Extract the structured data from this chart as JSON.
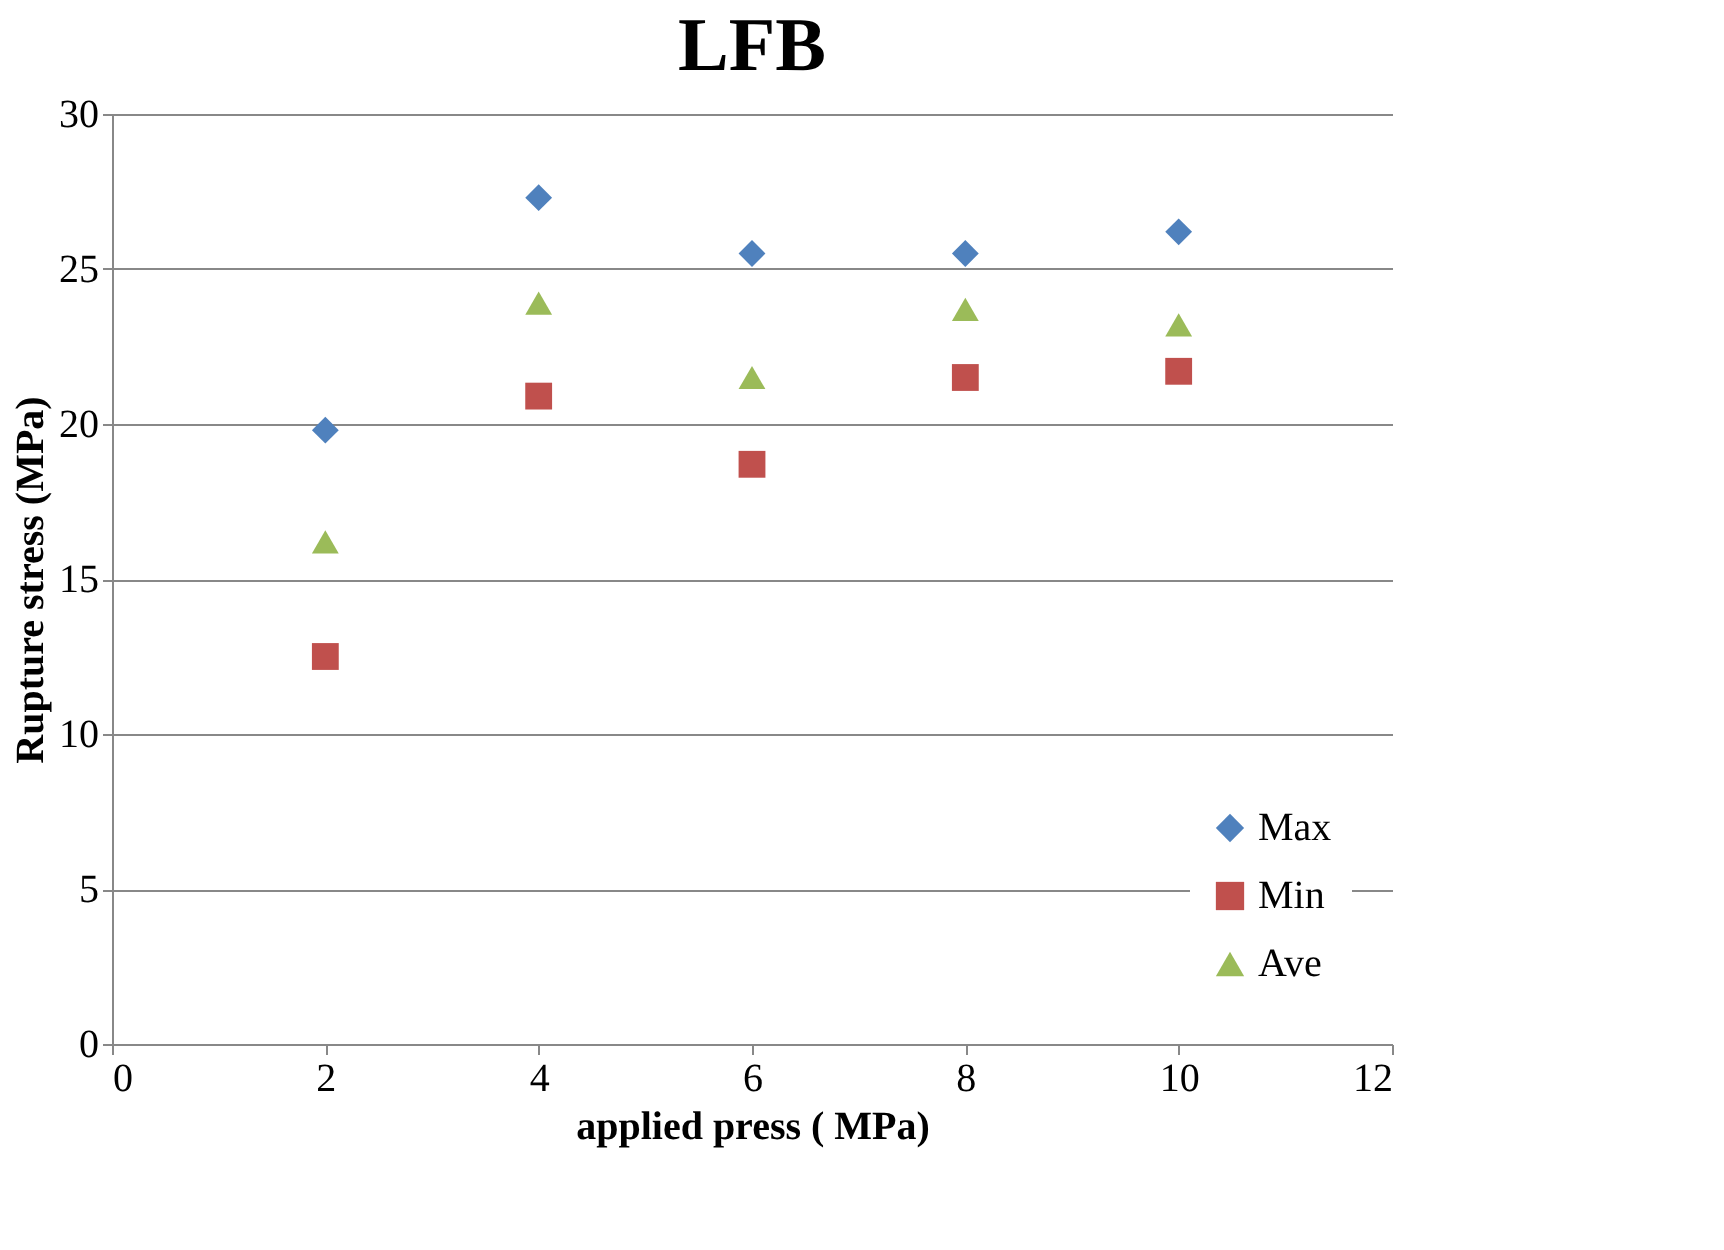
{
  "chart_data": {
    "type": "scatter",
    "title": "LFB",
    "xlabel": "applied press ( MPa)",
    "ylabel": "Rupture stress (MPa)",
    "x": [
      2,
      4,
      6,
      8,
      10
    ],
    "series": [
      {
        "name": "Max",
        "color": "#4f81bd",
        "marker": "diamond",
        "values": [
          19.8,
          27.3,
          25.5,
          25.5,
          26.2
        ]
      },
      {
        "name": "Min",
        "color": "#c0504d",
        "marker": "square",
        "values": [
          12.5,
          20.9,
          18.7,
          21.5,
          21.7
        ]
      },
      {
        "name": "Ave",
        "color": "#9bbb59",
        "marker": "triangle",
        "values": [
          16.2,
          23.9,
          21.5,
          23.7,
          23.2
        ]
      }
    ],
    "xlim": [
      0,
      12
    ],
    "xticks": [
      0,
      2,
      4,
      6,
      8,
      10,
      12
    ],
    "ylim": [
      0,
      30
    ],
    "yticks": [
      0,
      5,
      10,
      15,
      20,
      25,
      30
    ],
    "grid": "y",
    "legend": "bottom right"
  }
}
